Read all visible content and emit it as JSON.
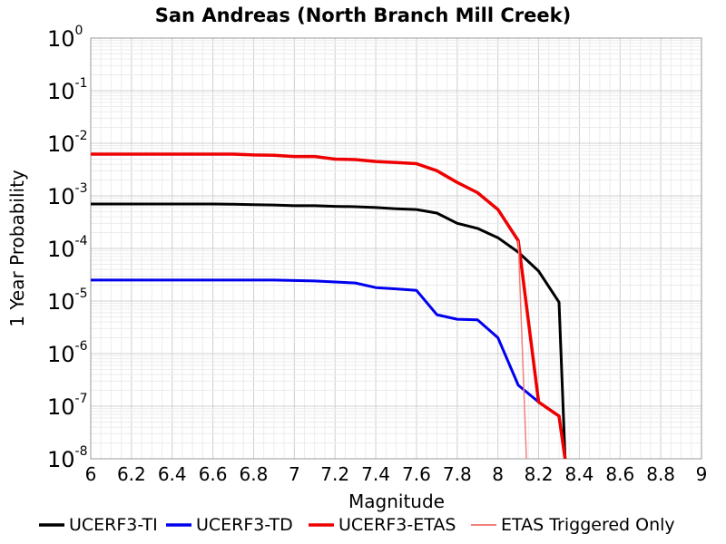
{
  "chart_data": {
    "type": "line",
    "title": "San Andreas (North Branch Mill Creek)",
    "xlabel": "Magnitude",
    "ylabel": "1 Year Probability",
    "xlim": [
      6,
      9
    ],
    "ylim": [
      1e-08,
      1
    ],
    "yscale": "log",
    "grid": true,
    "legend_position": "bottom",
    "x_ticks": [
      "6",
      "6.2",
      "6.4",
      "6.6",
      "6.8",
      "7",
      "7.2",
      "7.4",
      "7.6",
      "7.8",
      "8",
      "8.2",
      "8.4",
      "8.6",
      "8.8",
      "9"
    ],
    "y_ticks": [
      {
        "base": "10",
        "exp": "0"
      },
      {
        "base": "10",
        "exp": "-1"
      },
      {
        "base": "10",
        "exp": "-2"
      },
      {
        "base": "10",
        "exp": "-3"
      },
      {
        "base": "10",
        "exp": "-4"
      },
      {
        "base": "10",
        "exp": "-5"
      },
      {
        "base": "10",
        "exp": "-6"
      },
      {
        "base": "10",
        "exp": "-7"
      },
      {
        "base": "10",
        "exp": "-8"
      }
    ],
    "series": [
      {
        "name": "UCERF3-TI",
        "color": "#000000",
        "width": 3,
        "x": [
          6.0,
          6.1,
          6.2,
          6.3,
          6.4,
          6.5,
          6.6,
          6.7,
          6.8,
          6.9,
          7.0,
          7.1,
          7.2,
          7.3,
          7.4,
          7.5,
          7.6,
          7.7,
          7.8,
          7.9,
          8.0,
          8.1,
          8.2,
          8.3,
          8.33
        ],
        "y": [
          0.0007,
          0.0007,
          0.0007,
          0.0007,
          0.0007,
          0.0007,
          0.0007,
          0.00069,
          0.00068,
          0.00067,
          0.00065,
          0.00065,
          0.00063,
          0.00062,
          0.0006,
          0.00057,
          0.00055,
          0.00047,
          0.0003,
          0.00024,
          0.00016,
          8.5e-05,
          3.7e-05,
          9.5e-06,
          1e-08
        ]
      },
      {
        "name": "UCERF3-TD",
        "color": "#0000ee",
        "width": 3,
        "x": [
          6.0,
          6.1,
          6.2,
          6.3,
          6.4,
          6.5,
          6.6,
          6.7,
          6.8,
          6.9,
          7.0,
          7.1,
          7.2,
          7.3,
          7.4,
          7.5,
          7.6,
          7.7,
          7.8,
          7.9,
          8.0,
          8.1,
          8.2,
          8.3,
          8.33
        ],
        "y": [
          2.5e-05,
          2.5e-05,
          2.5e-05,
          2.5e-05,
          2.5e-05,
          2.5e-05,
          2.5e-05,
          2.5e-05,
          2.5e-05,
          2.5e-05,
          2.45e-05,
          2.4e-05,
          2.3e-05,
          2.2e-05,
          1.8e-05,
          1.7e-05,
          1.6e-05,
          5.5e-06,
          4.5e-06,
          4.4e-06,
          2e-06,
          2.5e-07,
          1.2e-07,
          6.5e-08,
          1e-08
        ]
      },
      {
        "name": "UCERF3-ETAS",
        "color": "#ee0000",
        "width": 3.5,
        "x": [
          6.0,
          6.1,
          6.2,
          6.3,
          6.4,
          6.5,
          6.6,
          6.7,
          6.8,
          6.9,
          7.0,
          7.1,
          7.2,
          7.3,
          7.4,
          7.5,
          7.6,
          7.7,
          7.8,
          7.9,
          8.0,
          8.1,
          8.2,
          8.3,
          8.33
        ],
        "y": [
          0.0062,
          0.0062,
          0.0062,
          0.0062,
          0.0062,
          0.0062,
          0.0062,
          0.0062,
          0.006,
          0.0059,
          0.0056,
          0.0056,
          0.005,
          0.0049,
          0.0045,
          0.0043,
          0.0041,
          0.003,
          0.0018,
          0.00115,
          0.00055,
          0.00014,
          1.2e-07,
          6.5e-08,
          1e-08
        ]
      },
      {
        "name": "ETAS Triggered Only",
        "color": "#f08080",
        "width": 1.5,
        "x": [
          8.1,
          8.14
        ],
        "y": [
          0.00014,
          1e-08
        ]
      }
    ]
  }
}
